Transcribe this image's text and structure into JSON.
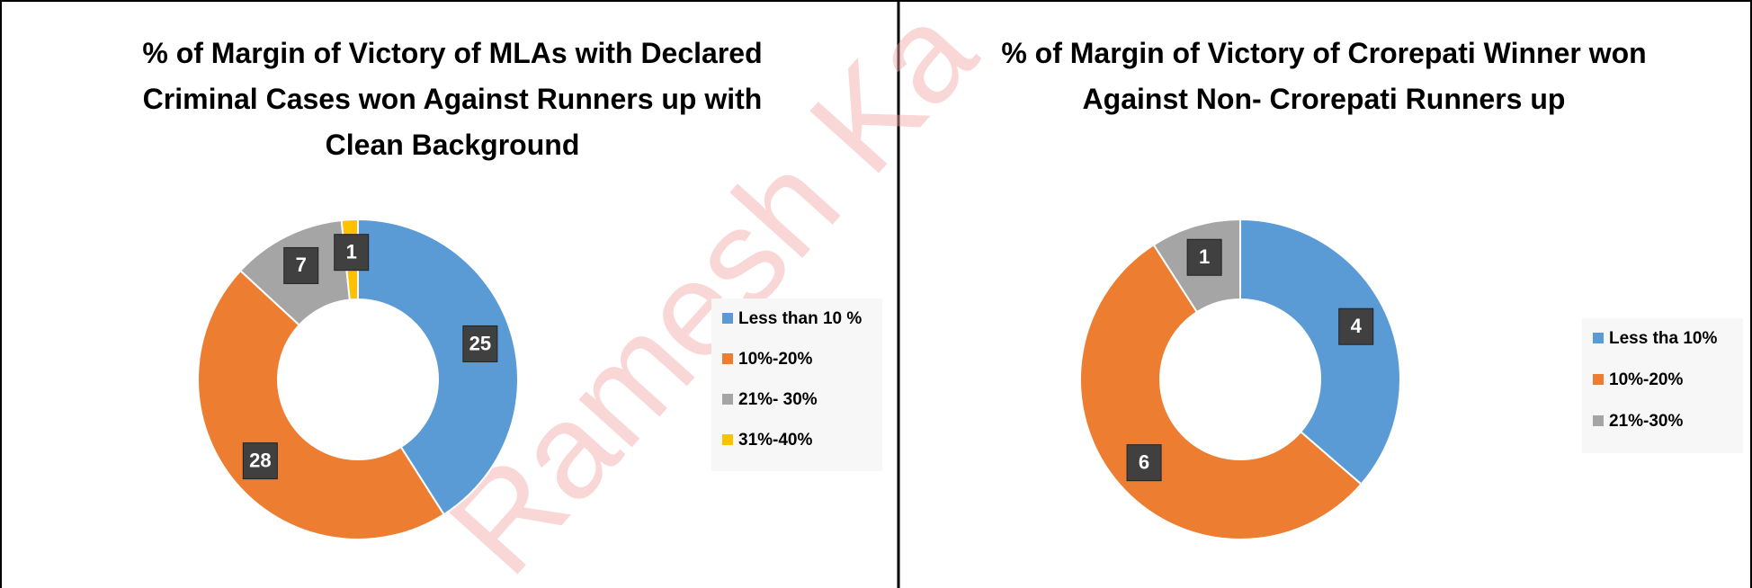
{
  "watermark": "Ramesh Ka",
  "chart_data": [
    {
      "type": "donut",
      "title": "% of Margin of Victory of MLAs with Declared Criminal Cases won Against Runners up with Clean Background",
      "categories": [
        "Less than 10 %",
        "10%-20%",
        "21%- 30%",
        "31%-40%"
      ],
      "values": [
        25,
        28,
        7,
        1
      ],
      "colors": [
        "#5b9bd5",
        "#ed7d31",
        "#a5a5a5",
        "#ffc000"
      ],
      "legend": "right"
    },
    {
      "type": "donut",
      "title": "% of Margin of Victory of Crorepati Winner won Against Non- Crorepati Runners up",
      "categories": [
        "Less tha 10%",
        "10%-20%",
        "21%-30%"
      ],
      "values": [
        4,
        6,
        1
      ],
      "colors": [
        "#5b9bd5",
        "#ed7d31",
        "#a5a5a5"
      ],
      "legend": "right"
    }
  ]
}
